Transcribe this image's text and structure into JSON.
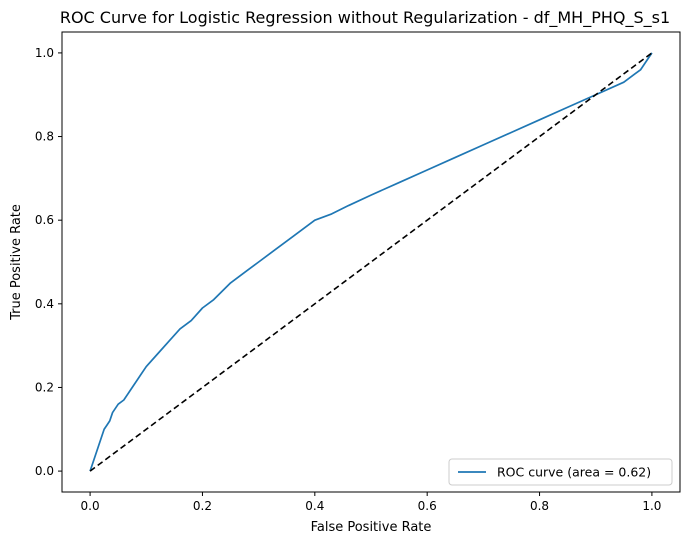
{
  "chart_data": {
    "type": "line",
    "title": "ROC Curve for Logistic Regression without Regularization - df_MH_PHQ_S_s1",
    "xlabel": "False Positive Rate",
    "ylabel": "True Positive Rate",
    "xlim": [
      -0.05,
      1.05
    ],
    "ylim": [
      -0.05,
      1.05
    ],
    "x_ticks": [
      0.0,
      0.2,
      0.4,
      0.6,
      0.8,
      1.0
    ],
    "y_ticks": [
      0.0,
      0.2,
      0.4,
      0.6,
      0.8,
      1.0
    ],
    "x_tick_labels": [
      "0.0",
      "0.2",
      "0.4",
      "0.6",
      "0.8",
      "1.0"
    ],
    "y_tick_labels": [
      "0.0",
      "0.2",
      "0.4",
      "0.6",
      "0.8",
      "1.0"
    ],
    "grid": false,
    "legend_position": "lower-right",
    "series": [
      {
        "name": "ROC curve (area = 0.62)",
        "color": "#1f77b4",
        "style": "solid",
        "x": [
          0.0,
          0.005,
          0.01,
          0.015,
          0.02,
          0.025,
          0.03,
          0.035,
          0.04,
          0.05,
          0.06,
          0.07,
          0.08,
          0.09,
          0.1,
          0.12,
          0.14,
          0.16,
          0.18,
          0.2,
          0.22,
          0.25,
          0.28,
          0.3,
          0.33,
          0.36,
          0.38,
          0.4,
          0.43,
          0.46,
          0.5,
          0.55,
          0.6,
          0.65,
          0.7,
          0.75,
          0.8,
          0.85,
          0.9,
          0.95,
          0.98,
          1.0
        ],
        "y": [
          0.0,
          0.02,
          0.04,
          0.06,
          0.08,
          0.1,
          0.11,
          0.12,
          0.14,
          0.16,
          0.17,
          0.19,
          0.21,
          0.23,
          0.25,
          0.28,
          0.31,
          0.34,
          0.36,
          0.39,
          0.41,
          0.45,
          0.48,
          0.5,
          0.53,
          0.56,
          0.58,
          0.6,
          0.615,
          0.635,
          0.66,
          0.69,
          0.72,
          0.75,
          0.78,
          0.81,
          0.84,
          0.87,
          0.9,
          0.93,
          0.96,
          1.0
        ]
      },
      {
        "name": "",
        "color": "#000000",
        "style": "dashed",
        "x": [
          0.0,
          1.0
        ],
        "y": [
          0.0,
          1.0
        ]
      }
    ]
  }
}
